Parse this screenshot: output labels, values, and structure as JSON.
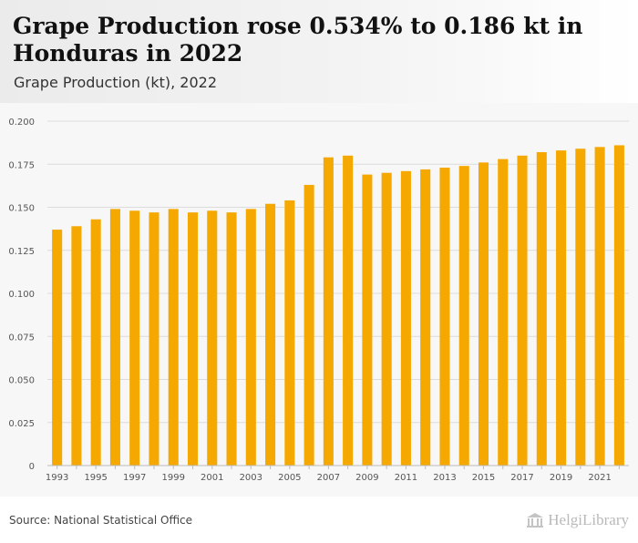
{
  "header": {
    "title": "Grape Production rose 0.534% to 0.186 kt in Honduras in 2022",
    "subtitle": "Grape Production (kt), 2022"
  },
  "footer": {
    "source": "Source: National Statistical Office",
    "logo_text": "HelgiLibrary"
  },
  "colors": {
    "bar": "#f5a800",
    "grid": "#dcdcdc",
    "axis_text": "#555555"
  },
  "chart_data": {
    "type": "bar",
    "title": "Grape Production (kt), 2022",
    "xlabel": "",
    "ylabel": "",
    "ylim": [
      0,
      0.2
    ],
    "yticks": [
      "0",
      "0.025",
      "0.050",
      "0.075",
      "0.100",
      "0.125",
      "0.150",
      "0.175",
      "0.200"
    ],
    "grid": true,
    "categories": [
      1993,
      1994,
      1995,
      1996,
      1997,
      1998,
      1999,
      2000,
      2001,
      2002,
      2003,
      2004,
      2005,
      2006,
      2007,
      2008,
      2009,
      2010,
      2011,
      2012,
      2013,
      2014,
      2015,
      2016,
      2017,
      2018,
      2019,
      2020,
      2021,
      2022
    ],
    "xtick_labels": [
      "1993",
      "1995",
      "1997",
      "1999",
      "2001",
      "2003",
      "2005",
      "2007",
      "2009",
      "2011",
      "2013",
      "2015",
      "2017",
      "2019",
      "2021"
    ],
    "values": [
      0.137,
      0.139,
      0.143,
      0.149,
      0.148,
      0.147,
      0.149,
      0.147,
      0.148,
      0.147,
      0.149,
      0.152,
      0.154,
      0.163,
      0.179,
      0.18,
      0.169,
      0.17,
      0.171,
      0.172,
      0.173,
      0.174,
      0.176,
      0.178,
      0.18,
      0.182,
      0.183,
      0.184,
      0.185,
      0.186
    ]
  }
}
